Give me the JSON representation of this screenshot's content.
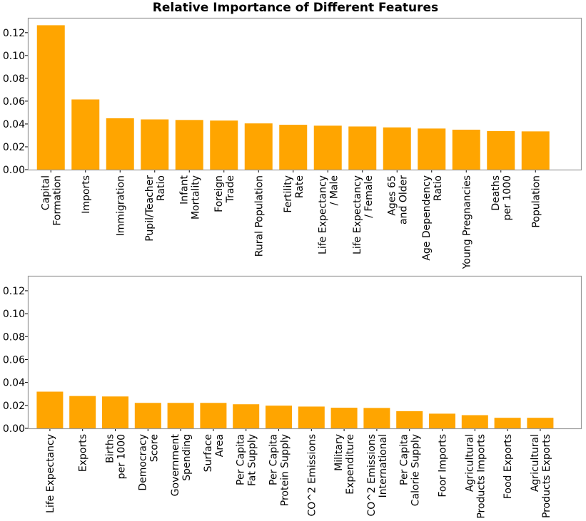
{
  "chart_data": [
    {
      "type": "bar",
      "title": "Relative Importance of Different Features",
      "xlabel": "",
      "ylabel": "",
      "ylim": [
        0,
        0.133
      ],
      "yticks": [
        "0.00",
        "0.02",
        "0.04",
        "0.06",
        "0.08",
        "0.10",
        "0.12"
      ],
      "grid": false,
      "bar_color": "#ffa500",
      "categories": [
        [
          "Capital",
          "Formation"
        ],
        [
          "Imports"
        ],
        [
          "Immigration"
        ],
        [
          "Pupil/Teacher",
          "Ratio"
        ],
        [
          "Infant",
          "Mortality"
        ],
        [
          "Foreign",
          "Trade"
        ],
        [
          "Rural Population"
        ],
        [
          "Fertility",
          "Rate"
        ],
        [
          "Life Expectancy",
          "/ Male"
        ],
        [
          "Life Expectancy",
          "/ Female"
        ],
        [
          "Ages 65",
          "and Older"
        ],
        [
          "Age Dependency",
          "Ratio"
        ],
        [
          "Young Pregnancies"
        ],
        [
          "Deaths",
          "per 1000"
        ],
        [
          "Population"
        ]
      ],
      "values": [
        0.1265,
        0.0615,
        0.045,
        0.044,
        0.0435,
        0.043,
        0.0405,
        0.0393,
        0.0385,
        0.0378,
        0.037,
        0.036,
        0.035,
        0.0338,
        0.0335
      ]
    },
    {
      "type": "bar",
      "title": "",
      "xlabel": "",
      "ylabel": "",
      "ylim": [
        0,
        0.133
      ],
      "yticks": [
        "0.00",
        "0.02",
        "0.04",
        "0.06",
        "0.08",
        "0.10",
        "0.12"
      ],
      "grid": false,
      "bar_color": "#ffa500",
      "categories": [
        [
          "Life Expectancy"
        ],
        [
          "Exports"
        ],
        [
          "Births",
          "per 1000"
        ],
        [
          "Democracy",
          "Score"
        ],
        [
          "Government",
          "Spending"
        ],
        [
          "Surface",
          "Area"
        ],
        [
          "Per Capita",
          "Fat Supply"
        ],
        [
          "Per Capita",
          "Protein Supply"
        ],
        [
          "CO^2 Emissions"
        ],
        [
          "Military",
          "Expenditure"
        ],
        [
          "CO^2 Emissions",
          "International"
        ],
        [
          "Per Capita",
          "Calorie Supply"
        ],
        [
          "Foor Imports"
        ],
        [
          "Agricultural",
          "Products Imports"
        ],
        [
          "Food Exports"
        ],
        [
          "Agricultural",
          "Products Exports"
        ]
      ],
      "values": [
        0.032,
        0.0282,
        0.0278,
        0.0222,
        0.0222,
        0.0222,
        0.021,
        0.0198,
        0.019,
        0.018,
        0.0178,
        0.015,
        0.0128,
        0.0115,
        0.0092,
        0.0092
      ]
    }
  ]
}
